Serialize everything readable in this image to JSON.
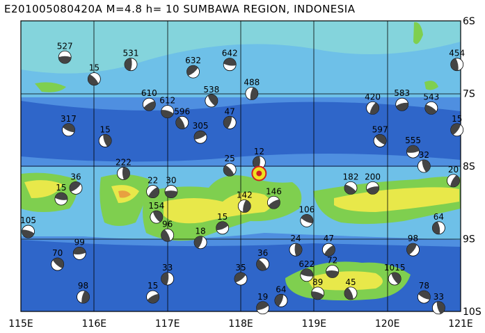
{
  "title": "E201005080420A M=4.8 h= 10 SUMBAWA REGION, INDONESIA",
  "lon_ticks": [
    "115E",
    "116E",
    "117E",
    "118E",
    "119E",
    "120E",
    "121E"
  ],
  "lat_ticks": [
    "6S",
    "7S",
    "8S",
    "9S",
    "10S"
  ],
  "extent": {
    "lon_min": 115,
    "lon_max": 121,
    "lat_min": -10,
    "lat_max": -6
  },
  "colors": {
    "deep": "#2f66c9",
    "mid": "#4f8fe0",
    "shallow": "#6ec0e8",
    "shelf": "#8ad8d8",
    "land_low": "#7fcf4f",
    "land_mid": "#e8e84a",
    "land_high": "#e8a040",
    "beach_dark": "#444444",
    "beach_light": "#ffffff",
    "event": "#d02020",
    "event_fill": "#f0e020"
  },
  "events": [
    {
      "id": "527",
      "lon": 115.6,
      "lat": -6.5
    },
    {
      "id": "15",
      "lon": 116.0,
      "lat": -6.8
    },
    {
      "id": "531",
      "lon": 116.5,
      "lat": -6.6
    },
    {
      "id": "632",
      "lon": 117.35,
      "lat": -6.7
    },
    {
      "id": "642",
      "lon": 117.85,
      "lat": -6.6
    },
    {
      "id": "538",
      "lon": 117.6,
      "lat": -7.1
    },
    {
      "id": "488",
      "lon": 118.15,
      "lat": -7.0
    },
    {
      "id": "610",
      "lon": 116.75,
      "lat": -7.15
    },
    {
      "id": "612",
      "lon": 117.0,
      "lat": -7.25
    },
    {
      "id": "596",
      "lon": 117.2,
      "lat": -7.4
    },
    {
      "id": "47",
      "lon": 117.85,
      "lat": -7.4
    },
    {
      "id": "305",
      "lon": 117.45,
      "lat": -7.6
    },
    {
      "id": "317",
      "lon": 115.65,
      "lat": -7.5
    },
    {
      "id": "15",
      "lon": 116.15,
      "lat": -7.65
    },
    {
      "id": "420",
      "lon": 119.8,
      "lat": -7.2
    },
    {
      "id": "583",
      "lon": 120.2,
      "lat": -7.15
    },
    {
      "id": "543",
      "lon": 120.6,
      "lat": -7.2
    },
    {
      "id": "454",
      "lon": 120.95,
      "lat": -6.6
    },
    {
      "id": "15",
      "lon": 120.95,
      "lat": -7.5
    },
    {
      "id": "555",
      "lon": 120.35,
      "lat": -7.8
    },
    {
      "id": "597",
      "lon": 119.9,
      "lat": -7.65
    },
    {
      "id": "222",
      "lon": 116.4,
      "lat": -8.1
    },
    {
      "id": "22",
      "lon": 116.8,
      "lat": -8.35
    },
    {
      "id": "30",
      "lon": 117.05,
      "lat": -8.35
    },
    {
      "id": "25",
      "lon": 117.85,
      "lat": -8.05
    },
    {
      "id": "12",
      "lon": 118.25,
      "lat": -7.95
    },
    {
      "id": "36",
      "lon": 115.75,
      "lat": -8.3
    },
    {
      "id": "15",
      "lon": 115.55,
      "lat": -8.45
    },
    {
      "id": "154",
      "lon": 116.85,
      "lat": -8.7
    },
    {
      "id": "142",
      "lon": 118.05,
      "lat": -8.55
    },
    {
      "id": "146",
      "lon": 118.45,
      "lat": -8.5
    },
    {
      "id": "105",
      "lon": 115.1,
      "lat": -8.9
    },
    {
      "id": "96",
      "lon": 117.0,
      "lat": -8.95
    },
    {
      "id": "18",
      "lon": 117.45,
      "lat": -9.05
    },
    {
      "id": "15",
      "lon": 117.75,
      "lat": -8.85
    },
    {
      "id": "106",
      "lon": 118.9,
      "lat": -8.75
    },
    {
      "id": "32",
      "lon": 120.5,
      "lat": -8.0
    },
    {
      "id": "20",
      "lon": 120.9,
      "lat": -8.2
    },
    {
      "id": "200",
      "lon": 119.8,
      "lat": -8.3
    },
    {
      "id": "182",
      "lon": 119.5,
      "lat": -8.3
    },
    {
      "id": "64",
      "lon": 120.7,
      "lat": -8.85
    },
    {
      "id": "98",
      "lon": 120.35,
      "lat": -9.15
    },
    {
      "id": "99",
      "lon": 115.8,
      "lat": -9.2
    },
    {
      "id": "70",
      "lon": 115.5,
      "lat": -9.35
    },
    {
      "id": "24",
      "lon": 118.75,
      "lat": -9.15
    },
    {
      "id": "47",
      "lon": 119.2,
      "lat": -9.15
    },
    {
      "id": "72",
      "lon": 119.25,
      "lat": -9.45
    },
    {
      "id": "36",
      "lon": 118.3,
      "lat": -9.35
    },
    {
      "id": "33",
      "lon": 117.0,
      "lat": -9.55
    },
    {
      "id": "35",
      "lon": 118.0,
      "lat": -9.55
    },
    {
      "id": "622",
      "lon": 118.9,
      "lat": -9.5
    },
    {
      "id": "1015",
      "lon": 120.1,
      "lat": -9.55
    },
    {
      "id": "98",
      "lon": 115.85,
      "lat": -9.8
    },
    {
      "id": "15",
      "lon": 116.8,
      "lat": -9.8
    },
    {
      "id": "89",
      "lon": 119.05,
      "lat": -9.75
    },
    {
      "id": "45",
      "lon": 119.5,
      "lat": -9.75
    },
    {
      "id": "64",
      "lon": 118.55,
      "lat": -9.85
    },
    {
      "id": "19",
      "lon": 118.3,
      "lat": -9.95
    },
    {
      "id": "78",
      "lon": 120.5,
      "lat": -9.8
    },
    {
      "id": "33",
      "lon": 120.7,
      "lat": -9.95
    }
  ],
  "main_event": {
    "lon": 118.25,
    "lat": -8.1
  }
}
